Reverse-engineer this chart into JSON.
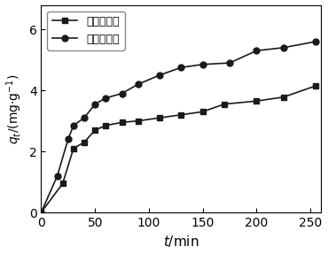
{
  "series1_label": "自然光照下",
  "series2_label": "紫外光照下",
  "series1_x": [
    0,
    20,
    30,
    40,
    50,
    60,
    75,
    90,
    110,
    130,
    150,
    170,
    200,
    225,
    255
  ],
  "series1_y": [
    0,
    0.95,
    2.1,
    2.3,
    2.7,
    2.85,
    2.95,
    3.0,
    3.1,
    3.2,
    3.3,
    3.55,
    3.65,
    3.78,
    4.15
  ],
  "series2_x": [
    0,
    15,
    25,
    30,
    40,
    50,
    60,
    75,
    90,
    110,
    130,
    150,
    175,
    200,
    225,
    255
  ],
  "series2_y": [
    0,
    1.2,
    2.4,
    2.85,
    3.1,
    3.55,
    3.75,
    3.9,
    4.2,
    4.5,
    4.75,
    4.85,
    4.9,
    5.3,
    5.4,
    5.6
  ],
  "xlabel": "$t$/min",
  "xlim": [
    0,
    260
  ],
  "ylim": [
    0,
    6.8
  ],
  "xticks": [
    0,
    50,
    100,
    150,
    200,
    250
  ],
  "yticks": [
    0,
    2,
    4,
    6
  ],
  "line_color": "#1a1a1a",
  "marker1": "s",
  "marker2": "o",
  "markersize": 5,
  "linewidth": 1.2,
  "legend_loc": "upper left",
  "background_color": "#ffffff"
}
